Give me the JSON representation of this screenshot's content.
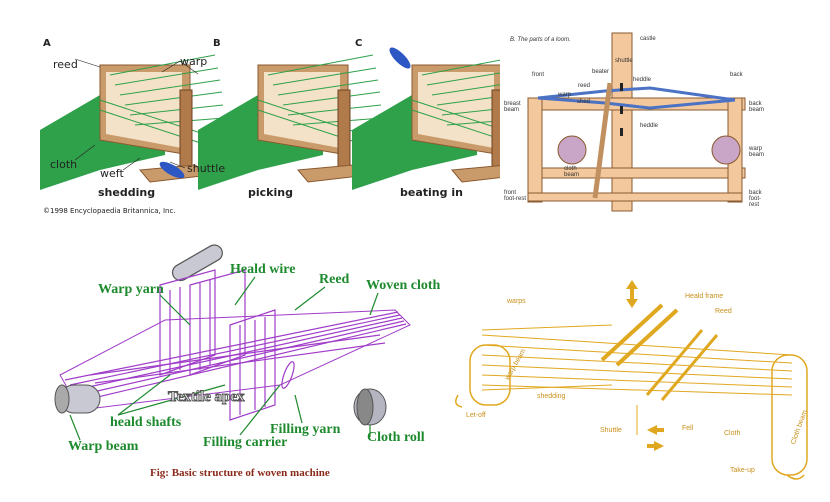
{
  "panel_a": {
    "letters": [
      "A",
      "B",
      "C"
    ],
    "captions": [
      "shedding",
      "picking",
      "beating in"
    ],
    "labels": {
      "reed": "reed",
      "warp": "warp",
      "cloth": "cloth",
      "weft": "weft",
      "shuttle": "shuttle"
    },
    "copyright": "©1998 Encyclopaedia Britannica, Inc."
  },
  "panel_b": {
    "title": "B. The parts of a loom.",
    "labels": {
      "castle": "castle",
      "front": "front",
      "back": "back",
      "beater": "beater",
      "shuttle": "shuttle",
      "reed": "reed",
      "heddle1": "heddle",
      "warp": "warp",
      "shed": "shed",
      "breast_beam": "breast beam",
      "back_beam": "back beam",
      "heddle2": "heddle",
      "warp_beam": "warp beam",
      "cloth_beam": "cloth beam",
      "front_foot_rest": "front foot-rest",
      "back_foot_rest": "back foot-rest"
    }
  },
  "panel_c": {
    "labels": {
      "warp_yarn": "Warp yarn",
      "heald_wire": "Heald wire",
      "reed": "Reed",
      "woven_cloth": "Woven cloth",
      "heald_shafts": "heald shafts",
      "filling_yarn": "Filling yarn",
      "filling_carrier": "Filling carrier",
      "warp_beam": "Warp beam",
      "cloth_roll": "Cloth roll"
    },
    "watermark": "Textile apex",
    "caption": "Fig: Basic structure of woven machine",
    "colors": {
      "structure": "#a03cc8",
      "label": "#1e8a2e",
      "caption": "#8b2a1a"
    }
  },
  "panel_d": {
    "labels": {
      "warps": "warps",
      "heald_frame": "Heald frame",
      "reed": "Reed",
      "warp_beam": "warp beam",
      "shedding": "shedding",
      "let_off": "Let-off",
      "shuttle": "Shuttle",
      "fell": "Fell",
      "cloth": "Cloth",
      "cloth_beam": "Cloth beam",
      "take_up": "Take-up"
    },
    "colors": {
      "structure": "#e0a820",
      "label": "#c8901a"
    }
  }
}
